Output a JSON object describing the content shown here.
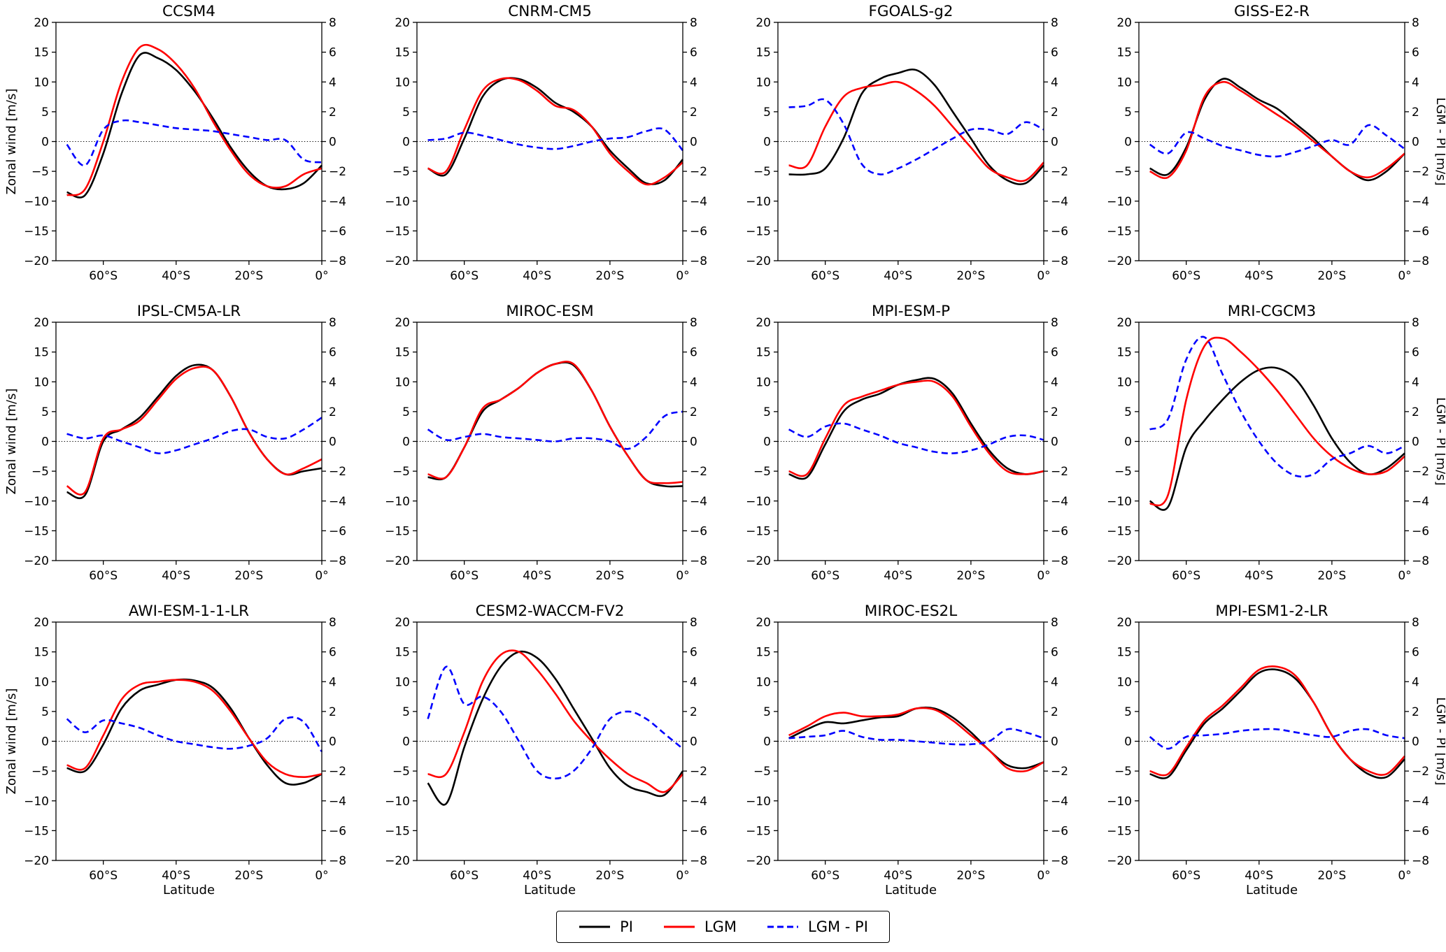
{
  "figure": {
    "background": "#ffffff"
  },
  "axes": {
    "x_label": "Latitude",
    "left_label": "Zonal wind [m/s]",
    "right_label": "LGM - PI [m/s]",
    "x_range": [
      -73,
      0
    ],
    "left_range": [
      -20,
      20
    ],
    "right_range": [
      -8,
      8
    ],
    "left_ticks": [
      -20,
      -15,
      -10,
      -5,
      0,
      5,
      10,
      15,
      20
    ],
    "right_ticks": [
      -8,
      -6,
      -4,
      -2,
      0,
      2,
      4,
      6,
      8
    ],
    "x_ticks": [
      {
        "v": -60,
        "label": "60°S"
      },
      {
        "v": -40,
        "label": "40°S"
      },
      {
        "v": -20,
        "label": "20°S"
      },
      {
        "v": 0,
        "label": "0°"
      }
    ],
    "zero_line": true,
    "grid": false
  },
  "legend": {
    "items": [
      {
        "label": "PI",
        "color": "#000000",
        "dash": "solid"
      },
      {
        "label": "LGM",
        "color": "#ff0000",
        "dash": "solid"
      },
      {
        "label": "LGM - PI",
        "color": "#0000ff",
        "dash": "dashed"
      }
    ]
  },
  "chart_data": [
    {
      "type": "line",
      "title": "CCSM4",
      "x": [
        -70,
        -65,
        -60,
        -55,
        -50,
        -45,
        -40,
        -35,
        -30,
        -25,
        -20,
        -15,
        -10,
        -5,
        0
      ],
      "series": [
        {
          "name": "PI",
          "axis": "left",
          "color": "#000000",
          "dash": "solid",
          "values": [
            -8.5,
            -9,
            -2,
            8,
            14.5,
            14,
            12,
            8.5,
            4,
            -1,
            -5,
            -7.5,
            -8,
            -7,
            -4
          ]
        },
        {
          "name": "LGM",
          "axis": "left",
          "color": "#ff0000",
          "dash": "solid",
          "values": [
            -9,
            -8,
            0,
            10,
            15.8,
            15.5,
            13,
            9,
            3.5,
            -1.5,
            -5.5,
            -7.5,
            -7.5,
            -5.5,
            -4.5
          ]
        },
        {
          "name": "LGM - PI",
          "axis": "right",
          "color": "#0000ff",
          "dash": "dashed",
          "values": [
            -0.2,
            -1.6,
            0.8,
            1.4,
            1.3,
            1.1,
            0.9,
            0.8,
            0.7,
            0.5,
            0.3,
            0.1,
            0.1,
            -1.2,
            -1.4
          ]
        }
      ]
    },
    {
      "type": "line",
      "title": "CNRM-CM5",
      "x": [
        -70,
        -65,
        -60,
        -55,
        -50,
        -45,
        -40,
        -35,
        -30,
        -25,
        -20,
        -15,
        -10,
        -5,
        0
      ],
      "series": [
        {
          "name": "PI",
          "axis": "left",
          "color": "#000000",
          "dash": "solid",
          "values": [
            -4.5,
            -5.5,
            0.5,
            7.5,
            10.3,
            10.5,
            9,
            6.5,
            5,
            2.5,
            -1.5,
            -4.5,
            -7,
            -6.5,
            -3
          ]
        },
        {
          "name": "LGM",
          "axis": "left",
          "color": "#ff0000",
          "dash": "solid",
          "values": [
            -4.5,
            -5,
            2,
            8.5,
            10.5,
            10.3,
            8.5,
            6,
            5.3,
            2.5,
            -2,
            -5,
            -7.2,
            -6,
            -3.5
          ]
        },
        {
          "name": "LGM - PI",
          "axis": "right",
          "color": "#0000ff",
          "dash": "dashed",
          "values": [
            0.1,
            0.2,
            0.6,
            0.4,
            0.1,
            -0.2,
            -0.4,
            -0.5,
            -0.3,
            0,
            0.2,
            0.3,
            0.7,
            0.8,
            -0.6
          ]
        }
      ]
    },
    {
      "type": "line",
      "title": "FGOALS-g2",
      "x": [
        -70,
        -65,
        -60,
        -55,
        -50,
        -45,
        -40,
        -35,
        -30,
        -25,
        -20,
        -15,
        -10,
        -5,
        0
      ],
      "series": [
        {
          "name": "PI",
          "axis": "left",
          "color": "#000000",
          "dash": "solid",
          "values": [
            -5.5,
            -5.5,
            -4.5,
            0.5,
            8,
            10.5,
            11.5,
            12,
            9.5,
            5,
            0.5,
            -4,
            -6.5,
            -7,
            -4
          ]
        },
        {
          "name": "LGM",
          "axis": "left",
          "color": "#ff0000",
          "dash": "solid",
          "values": [
            -4,
            -4,
            2.5,
            7.5,
            9,
            9.5,
            10,
            8.5,
            6,
            2.5,
            -1,
            -4.5,
            -6,
            -6.5,
            -3.5
          ]
        },
        {
          "name": "LGM - PI",
          "axis": "right",
          "color": "#0000ff",
          "dash": "dashed",
          "values": [
            2.3,
            2.4,
            2.8,
            1.2,
            -1.5,
            -2.2,
            -1.8,
            -1.2,
            -0.5,
            0.2,
            0.8,
            0.8,
            0.5,
            1.3,
            0.8
          ]
        }
      ]
    },
    {
      "type": "line",
      "title": "GISS-E2-R",
      "x": [
        -70,
        -65,
        -60,
        -55,
        -50,
        -45,
        -40,
        -35,
        -30,
        -25,
        -20,
        -15,
        -10,
        -5,
        0
      ],
      "series": [
        {
          "name": "PI",
          "axis": "left",
          "color": "#000000",
          "dash": "solid",
          "values": [
            -4.5,
            -5.5,
            -1,
            7,
            10.5,
            9,
            7,
            5.5,
            3,
            0.5,
            -2.5,
            -5,
            -6.5,
            -5,
            -2
          ]
        },
        {
          "name": "LGM",
          "axis": "left",
          "color": "#ff0000",
          "dash": "solid",
          "values": [
            -5,
            -6,
            -1.5,
            7.5,
            10,
            8.5,
            6.5,
            4.5,
            2.5,
            0,
            -2.5,
            -5,
            -6,
            -4.5,
            -2
          ]
        },
        {
          "name": "LGM - PI",
          "axis": "right",
          "color": "#0000ff",
          "dash": "dashed",
          "values": [
            -0.2,
            -0.8,
            0.6,
            0.2,
            -0.3,
            -0.6,
            -0.9,
            -1,
            -0.7,
            -0.3,
            0.1,
            -0.2,
            1.1,
            0.4,
            -0.5
          ]
        }
      ]
    },
    {
      "type": "line",
      "title": "IPSL-CM5A-LR",
      "x": [
        -70,
        -65,
        -60,
        -55,
        -50,
        -45,
        -40,
        -35,
        -30,
        -25,
        -20,
        -15,
        -10,
        -5,
        0
      ],
      "series": [
        {
          "name": "PI",
          "axis": "left",
          "color": "#000000",
          "dash": "solid",
          "values": [
            -8.5,
            -9,
            0,
            2,
            4,
            7.5,
            11,
            12.8,
            12,
            7.5,
            1.5,
            -3,
            -5.5,
            -5,
            -4.5
          ]
        },
        {
          "name": "LGM",
          "axis": "left",
          "color": "#ff0000",
          "dash": "solid",
          "values": [
            -7.5,
            -8.5,
            0.5,
            2,
            3.5,
            7,
            10.5,
            12.3,
            12,
            7.5,
            1.5,
            -3,
            -5.5,
            -4.5,
            -3
          ]
        },
        {
          "name": "LGM - PI",
          "axis": "right",
          "color": "#0000ff",
          "dash": "dashed",
          "values": [
            0.5,
            0.2,
            0.4,
            0,
            -0.4,
            -0.8,
            -0.6,
            -0.2,
            0.2,
            0.7,
            0.8,
            0.3,
            0.2,
            0.8,
            1.6
          ]
        }
      ]
    },
    {
      "type": "line",
      "title": "MIROC-ESM",
      "x": [
        -70,
        -65,
        -60,
        -55,
        -50,
        -45,
        -40,
        -35,
        -30,
        -25,
        -20,
        -15,
        -10,
        -5,
        0
      ],
      "series": [
        {
          "name": "PI",
          "axis": "left",
          "color": "#000000",
          "dash": "solid",
          "values": [
            -6,
            -6,
            -1,
            5,
            7,
            9,
            11.5,
            13,
            12.8,
            8.5,
            2.5,
            -2.5,
            -6.5,
            -7.5,
            -7.5
          ]
        },
        {
          "name": "LGM",
          "axis": "left",
          "color": "#ff0000",
          "dash": "solid",
          "values": [
            -5.5,
            -6,
            -1,
            5.5,
            7,
            9,
            11.5,
            13,
            13,
            8.5,
            2.5,
            -2.5,
            -6.5,
            -7,
            -6.8
          ]
        },
        {
          "name": "LGM - PI",
          "axis": "right",
          "color": "#0000ff",
          "dash": "dashed",
          "values": [
            0.8,
            0.1,
            0.3,
            0.5,
            0.3,
            0.2,
            0.1,
            0,
            0.2,
            0.2,
            0,
            -0.5,
            0.3,
            1.7,
            2
          ]
        }
      ]
    },
    {
      "type": "line",
      "title": "MPI-ESM-P",
      "x": [
        -70,
        -65,
        -60,
        -55,
        -50,
        -45,
        -40,
        -35,
        -30,
        -25,
        -20,
        -15,
        -10,
        -5,
        0
      ],
      "series": [
        {
          "name": "PI",
          "axis": "left",
          "color": "#000000",
          "dash": "solid",
          "values": [
            -5.5,
            -6,
            -0.5,
            5,
            7,
            8,
            9.5,
            10.3,
            10.5,
            8,
            3,
            -1.5,
            -4.5,
            -5.5,
            -5
          ]
        },
        {
          "name": "LGM",
          "axis": "left",
          "color": "#ff0000",
          "dash": "solid",
          "values": [
            -5,
            -5.5,
            0.5,
            6,
            7.5,
            8.5,
            9.5,
            10,
            10,
            7.5,
            2.5,
            -2,
            -5,
            -5.5,
            -5
          ]
        },
        {
          "name": "LGM - PI",
          "axis": "right",
          "color": "#0000ff",
          "dash": "dashed",
          "values": [
            0.8,
            0.3,
            1,
            1.2,
            0.8,
            0.4,
            -0.1,
            -0.4,
            -0.7,
            -0.8,
            -0.6,
            -0.2,
            0.3,
            0.4,
            0.1
          ]
        }
      ]
    },
    {
      "type": "line",
      "title": "MRI-CGCM3",
      "x": [
        -70,
        -65,
        -60,
        -55,
        -50,
        -45,
        -40,
        -35,
        -30,
        -25,
        -20,
        -15,
        -10,
        -5,
        0
      ],
      "series": [
        {
          "name": "PI",
          "axis": "left",
          "color": "#000000",
          "dash": "solid",
          "values": [
            -10,
            -11,
            -1,
            3.5,
            7,
            10,
            12,
            12.3,
            10.5,
            6,
            0.5,
            -3.5,
            -5.5,
            -4.5,
            -2
          ]
        },
        {
          "name": "LGM",
          "axis": "left",
          "color": "#ff0000",
          "dash": "solid",
          "values": [
            -10.5,
            -9,
            7,
            16,
            17.3,
            15,
            12,
            8.5,
            4.5,
            0.5,
            -2.5,
            -4.5,
            -5.5,
            -5,
            -2.5
          ]
        },
        {
          "name": "LGM - PI",
          "axis": "right",
          "color": "#0000ff",
          "dash": "dashed",
          "values": [
            0.8,
            1.5,
            5.5,
            7,
            4.5,
            2,
            0,
            -1.5,
            -2.3,
            -2.2,
            -1.2,
            -0.8,
            -0.3,
            -0.8,
            -0.3
          ]
        }
      ]
    },
    {
      "type": "line",
      "title": "AWI-ESM-1-1-LR",
      "x": [
        -70,
        -65,
        -60,
        -55,
        -50,
        -45,
        -40,
        -35,
        -30,
        -25,
        -20,
        -15,
        -10,
        -5,
        0
      ],
      "series": [
        {
          "name": "PI",
          "axis": "left",
          "color": "#000000",
          "dash": "solid",
          "values": [
            -4.5,
            -5,
            -0.5,
            5.5,
            8.5,
            9.5,
            10.3,
            10.2,
            9,
            5.5,
            0.5,
            -4,
            -7,
            -7,
            -5.5
          ]
        },
        {
          "name": "LGM",
          "axis": "left",
          "color": "#ff0000",
          "dash": "solid",
          "values": [
            -4,
            -4.5,
            1,
            7,
            9.5,
            10,
            10.3,
            10,
            8.5,
            5,
            0.5,
            -3.5,
            -5.5,
            -6,
            -5.5
          ]
        },
        {
          "name": "LGM - PI",
          "axis": "right",
          "color": "#0000ff",
          "dash": "dashed",
          "values": [
            1.5,
            0.6,
            1.4,
            1.2,
            0.9,
            0.4,
            0,
            -0.2,
            -0.4,
            -0.5,
            -0.3,
            0.2,
            1.5,
            1.3,
            -0.7
          ]
        }
      ]
    },
    {
      "type": "line",
      "title": "CESM2-WACCM-FV2",
      "x": [
        -70,
        -65,
        -60,
        -55,
        -50,
        -45,
        -40,
        -35,
        -30,
        -25,
        -20,
        -15,
        -10,
        -5,
        0
      ],
      "series": [
        {
          "name": "PI",
          "axis": "left",
          "color": "#000000",
          "dash": "solid",
          "values": [
            -7,
            -10.5,
            -1,
            7,
            12.5,
            15,
            14,
            10.5,
            5.5,
            0.5,
            -4.5,
            -7.5,
            -8.5,
            -9,
            -5
          ]
        },
        {
          "name": "LGM",
          "axis": "left",
          "color": "#ff0000",
          "dash": "solid",
          "values": [
            -5.5,
            -5.5,
            1.5,
            10,
            14.5,
            15,
            12,
            8,
            3.5,
            0,
            -3,
            -5.5,
            -7,
            -8.5,
            -5.5
          ]
        },
        {
          "name": "LGM - PI",
          "axis": "right",
          "color": "#0000ff",
          "dash": "dashed",
          "values": [
            1.5,
            5,
            2.5,
            3,
            2,
            0,
            -2,
            -2.5,
            -2,
            -0.5,
            1.5,
            2,
            1.5,
            0.5,
            -0.5
          ]
        }
      ]
    },
    {
      "type": "line",
      "title": "MIROC-ES2L",
      "x": [
        -70,
        -65,
        -60,
        -55,
        -50,
        -45,
        -40,
        -35,
        -30,
        -25,
        -20,
        -15,
        -10,
        -5,
        0
      ],
      "series": [
        {
          "name": "PI",
          "axis": "left",
          "color": "#000000",
          "dash": "solid",
          "values": [
            0.5,
            2,
            3.2,
            3,
            3.5,
            4,
            4.2,
            5.5,
            5.5,
            4,
            1.5,
            -1.5,
            -4,
            -4.5,
            -3.5
          ]
        },
        {
          "name": "LGM",
          "axis": "left",
          "color": "#ff0000",
          "dash": "solid",
          "values": [
            1,
            2.5,
            4.2,
            4.8,
            4.2,
            4.2,
            4.5,
            5.5,
            5.3,
            3.5,
            1,
            -1.5,
            -4.5,
            -5,
            -3.5
          ]
        },
        {
          "name": "LGM - PI",
          "axis": "right",
          "color": "#0000ff",
          "dash": "dashed",
          "values": [
            0.2,
            0.3,
            0.4,
            0.7,
            0.3,
            0.1,
            0.1,
            0,
            -0.1,
            -0.2,
            -0.2,
            0,
            0.8,
            0.6,
            0.2
          ]
        }
      ]
    },
    {
      "type": "line",
      "title": "MPI-ESM1-2-LR",
      "x": [
        -70,
        -65,
        -60,
        -55,
        -50,
        -45,
        -40,
        -35,
        -30,
        -25,
        -20,
        -15,
        -10,
        -5,
        0
      ],
      "series": [
        {
          "name": "PI",
          "axis": "left",
          "color": "#000000",
          "dash": "solid",
          "values": [
            -5.5,
            -6,
            -1.5,
            3,
            5.5,
            8.5,
            11.5,
            12,
            10.5,
            6.5,
            1,
            -3,
            -5.5,
            -6,
            -3
          ]
        },
        {
          "name": "LGM",
          "axis": "left",
          "color": "#ff0000",
          "dash": "solid",
          "values": [
            -5,
            -5.5,
            -1,
            3.5,
            6,
            9,
            12,
            12.5,
            11,
            6.5,
            1,
            -3,
            -5,
            -5.5,
            -2.5
          ]
        },
        {
          "name": "LGM - PI",
          "axis": "right",
          "color": "#0000ff",
          "dash": "dashed",
          "values": [
            0.3,
            -0.5,
            0.3,
            0.4,
            0.5,
            0.7,
            0.8,
            0.8,
            0.6,
            0.4,
            0.3,
            0.7,
            0.8,
            0.4,
            0.2
          ]
        }
      ]
    }
  ]
}
